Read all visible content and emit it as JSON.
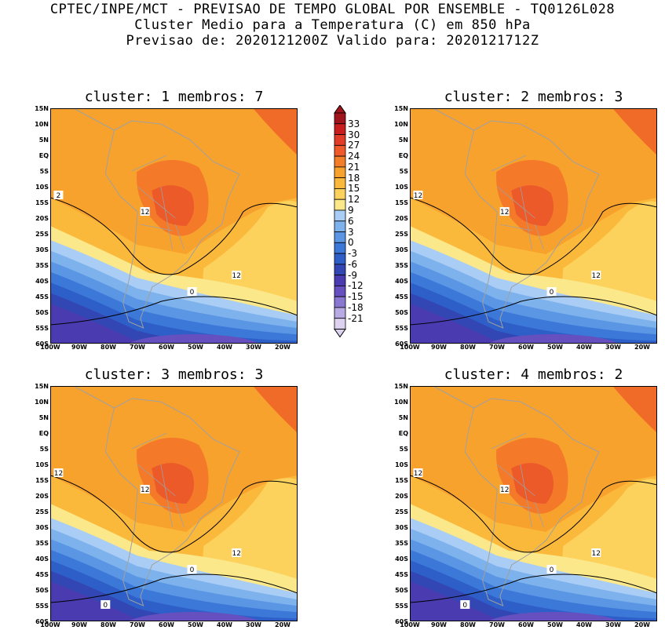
{
  "header": {
    "line1": "CPTEC/INPE/MCT - PREVISAO DE TEMPO GLOBAL POR ENSEMBLE - TQ0126L028",
    "line2": "Cluster Medio para a Temperatura (C) em 850 hPa",
    "line3": "Previsao de: 2020121200Z   Valido para: 2020121712Z"
  },
  "panels": [
    {
      "title": "cluster: 1  membros: 7",
      "contour_labels": [
        "2",
        "12",
        "12",
        "0"
      ]
    },
    {
      "title": "cluster: 2  membros: 3",
      "contour_labels": [
        "12",
        "12",
        "12",
        "0"
      ]
    },
    {
      "title": "cluster: 3  membros: 3",
      "contour_labels": [
        "12",
        "12",
        "12",
        "0",
        "0"
      ]
    },
    {
      "title": "cluster: 4  membros: 2",
      "contour_labels": [
        "12",
        "12",
        "12",
        "0",
        "0"
      ]
    }
  ],
  "lat_labels": [
    "15N",
    "10N",
    "5N",
    "EQ",
    "5S",
    "10S",
    "15S",
    "20S",
    "25S",
    "30S",
    "35S",
    "40S",
    "45S",
    "50S",
    "55S",
    "60S"
  ],
  "lon_labels": [
    "100W",
    "90W",
    "80W",
    "70W",
    "60W",
    "50W",
    "40W",
    "30W",
    "20W"
  ],
  "colorbar": {
    "levels": [
      "33",
      "30",
      "27",
      "24",
      "21",
      "18",
      "15",
      "12",
      "9",
      "6",
      "3",
      "0",
      "-3",
      "-6",
      "-9",
      "-12",
      "-15",
      "-18",
      "-21"
    ],
    "colors": [
      "#a0141e",
      "#c81e1e",
      "#e03c28",
      "#f05a2a",
      "#f47d2a",
      "#f8a22e",
      "#fbb93c",
      "#fdd25c",
      "#fbe88a",
      "#aacdf5",
      "#7eb2ec",
      "#5a96e4",
      "#3c78d8",
      "#2e5ec8",
      "#3246b4",
      "#4a3cb0",
      "#6650c0",
      "#8878d0",
      "#b8aae2",
      "#dcd2f0"
    ]
  }
}
